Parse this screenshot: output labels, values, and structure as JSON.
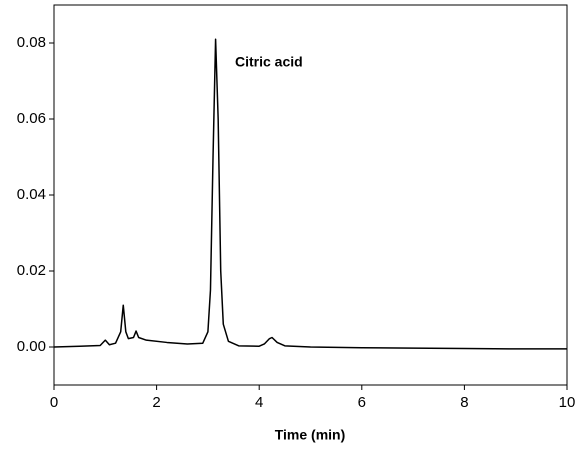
{
  "chart_data": {
    "type": "line",
    "x_label": "Time (min)",
    "annotation": "Citric acid",
    "xlim": [
      0,
      10
    ],
    "xticks": [
      0,
      2,
      4,
      6,
      8,
      10
    ],
    "ylim": [
      -0.01,
      0.09
    ],
    "yticks": [
      {
        "value": 0,
        "label": "0.00"
      },
      0.02,
      0.04,
      0.06,
      0.08
    ],
    "series": [
      {
        "color": "#000000",
        "x": [
          0,
          0.5,
          0.9,
          1.0,
          1.08,
          1.2,
          1.3,
          1.35,
          1.4,
          1.45,
          1.55,
          1.6,
          1.65,
          1.8,
          2.2,
          2.6,
          2.9,
          3.0,
          3.05,
          3.1,
          3.15,
          3.2,
          3.25,
          3.3,
          3.4,
          3.6,
          4.0,
          4.1,
          4.2,
          4.25,
          4.35,
          4.5,
          5.0,
          6.0,
          7.0,
          8.0,
          9.0,
          10.0
        ],
        "values": [
          0.0,
          0.0002,
          0.0004,
          0.0018,
          0.0006,
          0.001,
          0.004,
          0.011,
          0.004,
          0.0022,
          0.0025,
          0.0042,
          0.0025,
          0.0018,
          0.0012,
          0.0008,
          0.001,
          0.004,
          0.015,
          0.05,
          0.081,
          0.06,
          0.02,
          0.006,
          0.0015,
          0.0003,
          0.0002,
          0.0008,
          0.0022,
          0.0025,
          0.0012,
          0.0003,
          0.0,
          -0.0002,
          -0.0003,
          -0.0004,
          -0.0005,
          -0.0005
        ]
      }
    ]
  }
}
